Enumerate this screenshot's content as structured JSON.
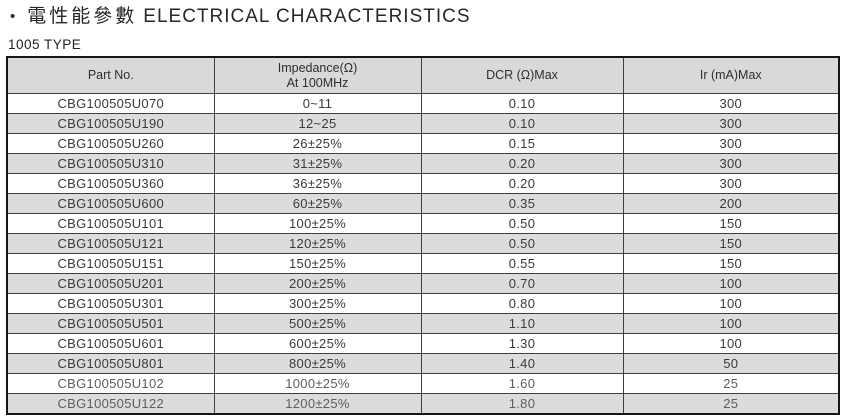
{
  "title": {
    "bullet": "•",
    "zh": "電性能參數",
    "en": "ELECTRICAL CHARACTERISTICS"
  },
  "subtitle": "1005 TYPE",
  "colors": {
    "header_bg": "#d9d9d9",
    "row_alt_bg": "#dcdcdc",
    "outer_border": "#161616",
    "inner_border": "#3f3f3f",
    "text": "#3a3a3a",
    "muted_text": "#5d5d5d"
  },
  "table": {
    "headers": {
      "part": "Part No.",
      "impedance_line1": "Impedance(Ω)",
      "impedance_line2": "At 100MHz",
      "dcr": "DCR (Ω)Max",
      "ir": "Ir (mA)Max"
    },
    "rows": [
      {
        "part": "CBG100505U070",
        "impedance": "0~11",
        "dcr": "0.10",
        "ir": "300"
      },
      {
        "part": "CBG100505U190",
        "impedance": "12~25",
        "dcr": "0.10",
        "ir": "300"
      },
      {
        "part": "CBG100505U260",
        "impedance": "26±25%",
        "dcr": "0.15",
        "ir": "300"
      },
      {
        "part": "CBG100505U310",
        "impedance": "31±25%",
        "dcr": "0.20",
        "ir": "300"
      },
      {
        "part": "CBG100505U360",
        "impedance": "36±25%",
        "dcr": "0.20",
        "ir": "300"
      },
      {
        "part": "CBG100505U600",
        "impedance": "60±25%",
        "dcr": "0.35",
        "ir": "200"
      },
      {
        "part": "CBG100505U101",
        "impedance": "100±25%",
        "dcr": "0.50",
        "ir": "150"
      },
      {
        "part": "CBG100505U121",
        "impedance": "120±25%",
        "dcr": "0.50",
        "ir": "150"
      },
      {
        "part": "CBG100505U151",
        "impedance": "150±25%",
        "dcr": "0.55",
        "ir": "150"
      },
      {
        "part": "CBG100505U201",
        "impedance": "200±25%",
        "dcr": "0.70",
        "ir": "100"
      },
      {
        "part": "CBG100505U301",
        "impedance": "300±25%",
        "dcr": "0.80",
        "ir": "100"
      },
      {
        "part": "CBG100505U501",
        "impedance": "500±25%",
        "dcr": "1.10",
        "ir": "100"
      },
      {
        "part": "CBG100505U601",
        "impedance": "600±25%",
        "dcr": "1.30",
        "ir": "100"
      },
      {
        "part": "CBG100505U801",
        "impedance": "800±25%",
        "dcr": "1.40",
        "ir": "50"
      },
      {
        "part": "CBG100505U102",
        "impedance": "1000±25%",
        "dcr": "1.60",
        "ir": "25"
      },
      {
        "part": "CBG100505U122",
        "impedance": "1200±25%",
        "dcr": "1.80",
        "ir": "25"
      }
    ]
  }
}
